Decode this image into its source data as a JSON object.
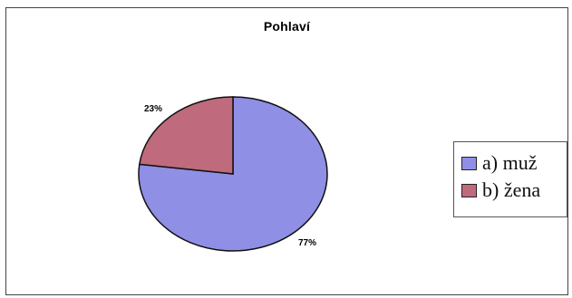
{
  "chart_data": {
    "type": "pie",
    "title": "Pohlaví",
    "categories": [
      "a) muž",
      "b) žena"
    ],
    "values": [
      77,
      23
    ],
    "data_labels": [
      "77%",
      "23%"
    ],
    "colors": [
      "#8f8fe6",
      "#c06a7d"
    ],
    "legend_position": "right"
  }
}
